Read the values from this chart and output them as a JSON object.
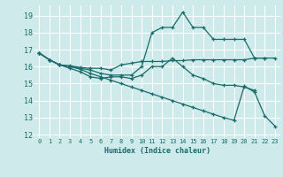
{
  "xlabel": "Humidex (Indice chaleur)",
  "background_color": "#ceeaea",
  "grid_color": "#ffffff",
  "line_color": "#1a6b6b",
  "xlim": [
    -0.5,
    23.5
  ],
  "ylim": [
    11.8,
    19.6
  ],
  "yticks": [
    12,
    13,
    14,
    15,
    16,
    17,
    18,
    19
  ],
  "xticks": [
    0,
    1,
    2,
    3,
    4,
    5,
    6,
    7,
    8,
    9,
    10,
    11,
    12,
    13,
    14,
    15,
    16,
    17,
    18,
    19,
    20,
    21,
    22,
    23
  ],
  "lines": [
    {
      "x": [
        0,
        1,
        2,
        3,
        4,
        5,
        6,
        7,
        8,
        9,
        10,
        11,
        12,
        13,
        14,
        15,
        16,
        17,
        18,
        19,
        20,
        21,
        22,
        23
      ],
      "y": [
        16.8,
        16.4,
        16.1,
        16.05,
        15.95,
        15.9,
        15.9,
        15.8,
        16.1,
        16.2,
        16.3,
        16.3,
        16.3,
        16.35,
        16.35,
        16.4,
        16.4,
        16.4,
        16.4,
        16.4,
        16.4,
        16.5,
        16.5,
        16.5
      ]
    },
    {
      "x": [
        0,
        1,
        2,
        3,
        4,
        5,
        6,
        7,
        8,
        9,
        10,
        11,
        12,
        13,
        14,
        15,
        16,
        17,
        18,
        19,
        20,
        21,
        22,
        23
      ],
      "y": [
        16.8,
        16.4,
        16.1,
        16.0,
        15.9,
        15.8,
        15.6,
        15.5,
        15.5,
        15.5,
        16.0,
        18.0,
        18.3,
        18.3,
        19.2,
        18.3,
        18.3,
        17.6,
        17.6,
        17.6,
        17.6,
        16.5,
        16.5,
        null
      ]
    },
    {
      "x": [
        0,
        1,
        2,
        3,
        4,
        5,
        6,
        7,
        8,
        9,
        10,
        11,
        12,
        13,
        14,
        15,
        16,
        17,
        18,
        19,
        20,
        21,
        22,
        23
      ],
      "y": [
        16.8,
        16.4,
        16.1,
        15.9,
        15.7,
        15.4,
        15.3,
        15.4,
        15.4,
        15.3,
        15.5,
        16.0,
        16.0,
        16.5,
        16.0,
        15.5,
        15.3,
        15.0,
        14.9,
        14.9,
        14.8,
        14.6,
        null,
        null
      ]
    },
    {
      "x": [
        0,
        1,
        2,
        3,
        4,
        5,
        6,
        7,
        8,
        9,
        10,
        11,
        12,
        13,
        14,
        15,
        16,
        17,
        18,
        19,
        20,
        21,
        22,
        23
      ],
      "y": [
        16.8,
        16.4,
        16.1,
        16.0,
        15.85,
        15.6,
        15.4,
        15.2,
        15.0,
        14.8,
        14.6,
        14.4,
        14.2,
        14.0,
        13.8,
        13.6,
        13.4,
        13.2,
        13.0,
        12.85,
        14.85,
        14.5,
        13.1,
        12.5
      ]
    }
  ]
}
